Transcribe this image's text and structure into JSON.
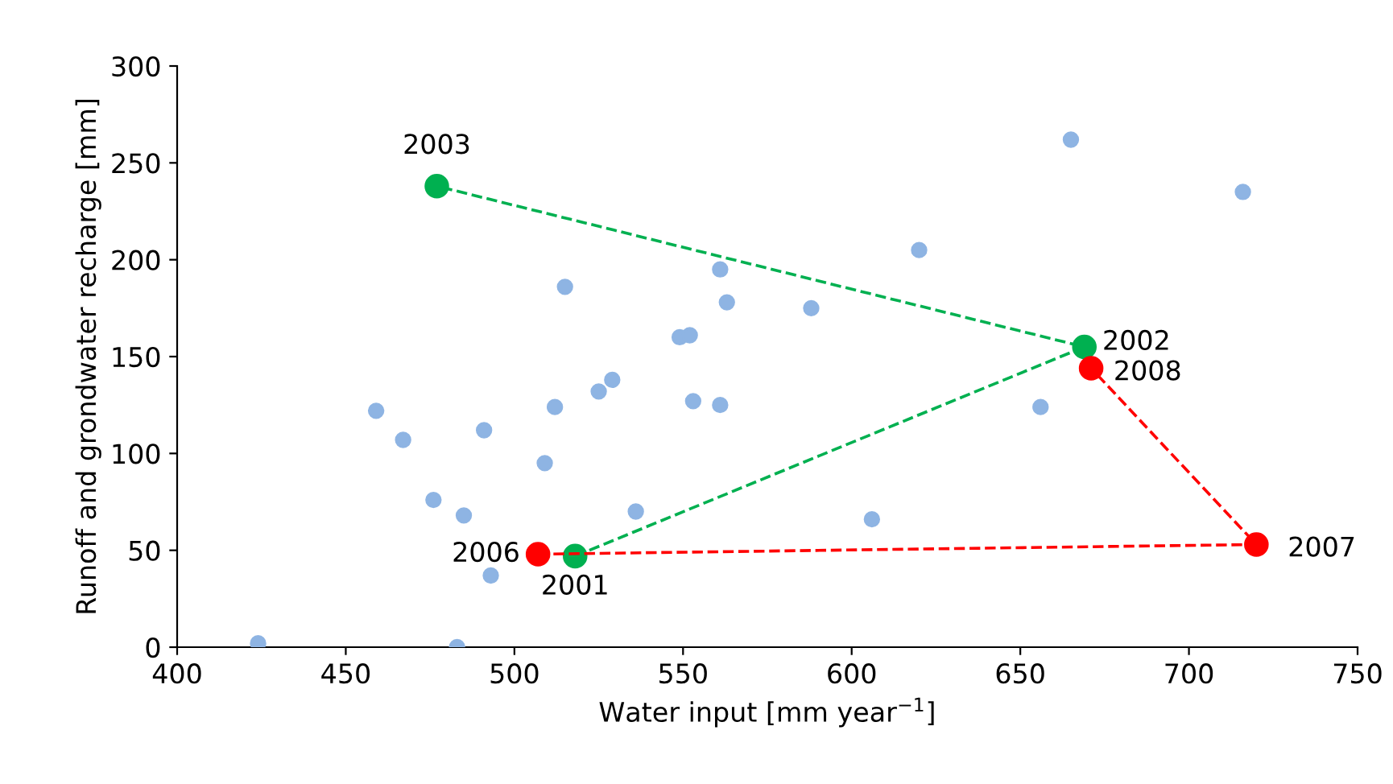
{
  "chart_data": {
    "type": "scatter",
    "xlabel": "Water input [mm year$^{−1}$]",
    "ylabel": "Runoff and grondwater recharge [mm]",
    "xlim": [
      400,
      750
    ],
    "xticks": [
      400,
      450,
      500,
      550,
      600,
      650,
      700,
      750
    ],
    "ylim": [
      0,
      300
    ],
    "yticks": [
      0,
      50,
      100,
      150,
      200,
      250,
      300
    ],
    "grid": false,
    "legend": false,
    "marker": "circle",
    "series": [
      {
        "color": "#8eb4e3",
        "x": [
          424,
          459,
          467,
          476,
          485,
          491,
          493,
          483,
          509,
          512,
          515,
          525,
          529,
          536,
          549,
          552,
          553,
          561,
          563,
          561,
          588,
          606,
          620,
          656,
          665,
          716
        ],
        "values": [
          2,
          122,
          107,
          76,
          68,
          112,
          37,
          0,
          95,
          124,
          186,
          132,
          138,
          70,
          160,
          161,
          127,
          195,
          178,
          125,
          175,
          66,
          205,
          124,
          262,
          235
        ]
      },
      {
        "type": "line",
        "line_style": "dashed",
        "color": "#00b050",
        "x": [
          518,
          669,
          477
        ],
        "values": [
          47,
          155,
          238
        ]
      },
      {
        "type": "line",
        "line_style": "dashed",
        "color": "#ff0000",
        "x": [
          507,
          720,
          671
        ],
        "values": [
          48,
          53,
          144
        ]
      }
    ],
    "annotations": [
      {
        "text": "2003",
        "x": 477,
        "y": 238
      },
      {
        "text": "2002",
        "x": 669,
        "y": 155
      },
      {
        "text": "2008",
        "x": 671,
        "y": 144
      },
      {
        "text": "2007",
        "x": 720,
        "y": 53
      },
      {
        "text": "2006",
        "x": 507,
        "y": 48
      },
      {
        "text": "2001",
        "x": 518,
        "y": 47
      }
    ]
  }
}
